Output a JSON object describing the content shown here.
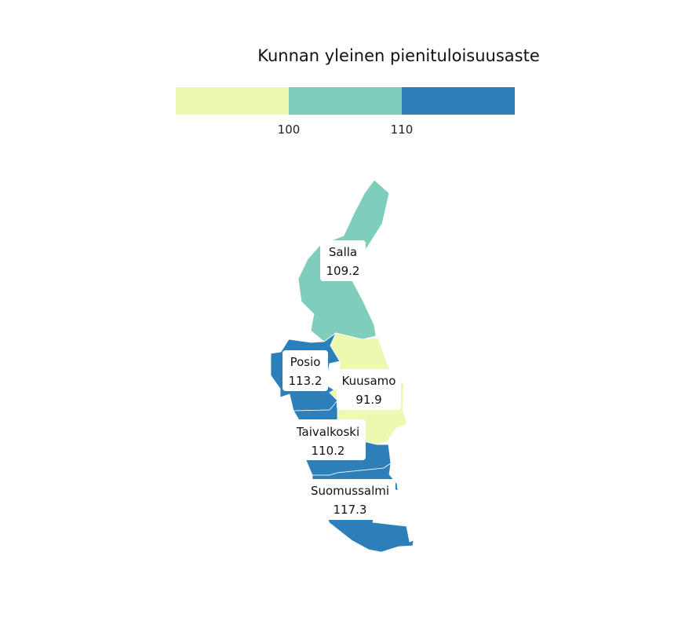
{
  "legend": {
    "title": "Kunnan yleinen pienituloisuusaste",
    "breaks": [
      100,
      110
    ],
    "tick_labels": [
      "100",
      "110"
    ],
    "bins": [
      {
        "range": "< 100",
        "color": "#edf8b1"
      },
      {
        "range": "100 – 110",
        "color": "#7fcdbb"
      },
      {
        "range": "> 110",
        "color": "#2c7fb8"
      }
    ]
  },
  "regions": [
    {
      "name": "Salla",
      "value": "109.2"
    },
    {
      "name": "Posio",
      "value": "113.2"
    },
    {
      "name": "Kuusamo",
      "value": "91.9"
    },
    {
      "name": "Taivalkoski",
      "value": "110.2"
    },
    {
      "name": "Suomussalmi",
      "value": "117.3"
    }
  ]
}
